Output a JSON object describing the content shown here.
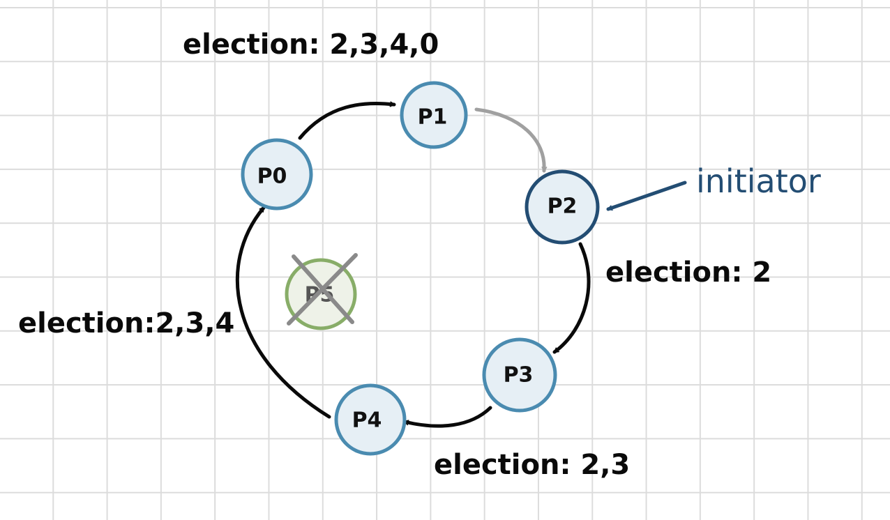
{
  "diagram": {
    "nodes": [
      {
        "id": "p0",
        "label": "P0",
        "state": "active"
      },
      {
        "id": "p1",
        "label": "P1",
        "state": "active"
      },
      {
        "id": "p2",
        "label": "P2",
        "state": "initiator"
      },
      {
        "id": "p3",
        "label": "P3",
        "state": "active"
      },
      {
        "id": "p4",
        "label": "P4",
        "state": "active"
      },
      {
        "id": "p5",
        "label": "P5",
        "state": "crashed"
      }
    ],
    "messages": [
      {
        "from": "p2",
        "to": "p3",
        "text": "election: 2"
      },
      {
        "from": "p3",
        "to": "p4",
        "text": "election: 2,3"
      },
      {
        "from": "p4",
        "to": "p0",
        "text": "election:2,3,4"
      },
      {
        "from": "p0",
        "to": "p1",
        "text": "election: 2,3,4,0"
      },
      {
        "from": "p1",
        "to": "p2",
        "text": ""
      }
    ],
    "initiator_label": "initiator",
    "colors": {
      "node_fill": "#e6eff5",
      "node_stroke": "#4a8bb0",
      "initiator_stroke": "#234d73",
      "crashed_fill": "#eef2e8",
      "crashed_stroke": "#88ad68",
      "cross": "#8a8a8a",
      "arrow": "#0a0a0a",
      "return_arrow": "#a0a0a0",
      "initiator_text": "#234d73"
    }
  }
}
